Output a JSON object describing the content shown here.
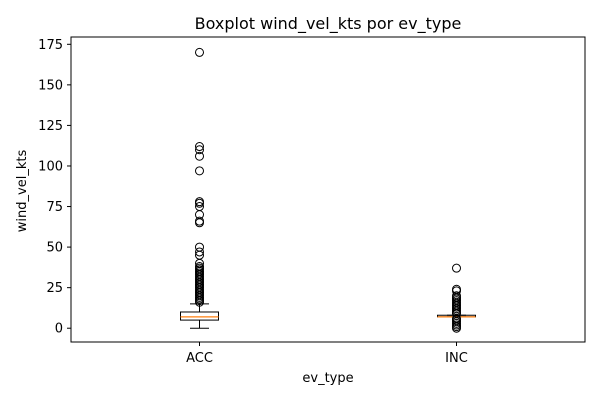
{
  "chart_data": {
    "type": "box",
    "title": "Boxplot wind_vel_kts por ev_type",
    "xlabel": "ev_type",
    "ylabel": "wind_vel_kts",
    "ylim": [
      -8.5,
      179.5
    ],
    "yticks": [
      0,
      25,
      50,
      75,
      100,
      125,
      150,
      175
    ],
    "grid": false,
    "categories": [
      "ACC",
      "INC"
    ],
    "boxes": [
      {
        "category": "ACC",
        "whisker_low": 0,
        "q1": 5,
        "median": 7,
        "q3": 10,
        "whisker_high": 15,
        "outliers": [
          16,
          17,
          18,
          19,
          20,
          21,
          22,
          23,
          24,
          25,
          26,
          27,
          28,
          29,
          30,
          31,
          32,
          33,
          34,
          35,
          36,
          37,
          38,
          40,
          45,
          47,
          50,
          65,
          66,
          70,
          75,
          77,
          78,
          97,
          106,
          110,
          112,
          170
        ]
      },
      {
        "category": "INC",
        "whisker_low": 7,
        "q1": 7,
        "median": 7,
        "q3": 8,
        "whisker_high": 8,
        "outliers": [
          0,
          1,
          2,
          3,
          4,
          5,
          6,
          9,
          10,
          11,
          12,
          13,
          14,
          15,
          16,
          17,
          18,
          19,
          20,
          23,
          24,
          37
        ]
      }
    ],
    "colors": {
      "box": "#000000",
      "median": "#ff7f0e",
      "outlier": "#000000"
    }
  }
}
